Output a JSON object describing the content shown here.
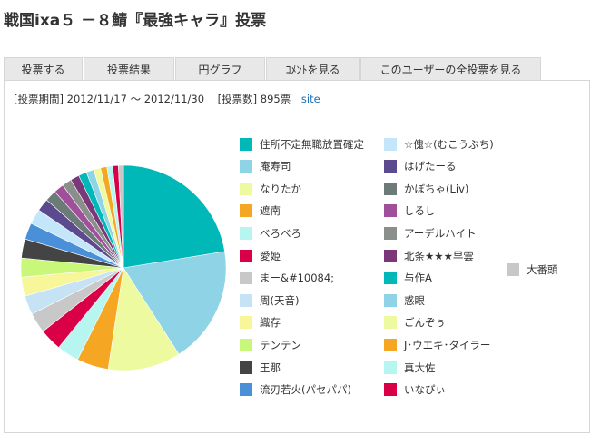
{
  "page": {
    "title": "戦国ixa５ －８鯖『最強キャラ』投票"
  },
  "tabs": [
    {
      "label": "投票する"
    },
    {
      "label": "投票結果"
    },
    {
      "label": "円グラフ"
    },
    {
      "label": "ｺﾒﾝﾄを見る"
    },
    {
      "label": "このユーザーの全投票を見る"
    }
  ],
  "info": {
    "period_label": "[投票期間]",
    "period_value": "2012/11/17 〜 2012/11/30",
    "count_label": "[投票数]",
    "count_value": "895票",
    "site_link": "site"
  },
  "chart_data": {
    "type": "pie",
    "title": "",
    "total_votes": 895,
    "slices": [
      {
        "label": "住所不定無職放置確定",
        "value": 22.5,
        "color": "#00b8b8"
      },
      {
        "label": "庵寿司",
        "value": 18.5,
        "color": "#8fd3e6"
      },
      {
        "label": "なりたか",
        "value": 11.5,
        "color": "#eefa9f"
      },
      {
        "label": "遮南",
        "value": 5.0,
        "color": "#f5a623"
      },
      {
        "label": "べろべろ",
        "value": 3.5,
        "color": "#b7f5f0"
      },
      {
        "label": "愛姫",
        "value": 3.5,
        "color": "#d90048"
      },
      {
        "label": "まー&#10084;",
        "value": 3.2,
        "color": "#c8c8c8"
      },
      {
        "label": "周(天音)",
        "value": 3.0,
        "color": "#c6e3f6"
      },
      {
        "label": "織存",
        "value": 3.0,
        "color": "#f7f79a"
      },
      {
        "label": "テンテン",
        "value": 3.0,
        "color": "#c9f77a"
      },
      {
        "label": "王那",
        "value": 3.0,
        "color": "#444444"
      },
      {
        "label": "流刃若火(パセパパ)",
        "value": 2.6,
        "color": "#4a90d9"
      },
      {
        "label": "☆傀☆(むこうぶち)",
        "value": 2.4,
        "color": "#c4e6fa"
      },
      {
        "label": "はげたーる",
        "value": 2.0,
        "color": "#5c4a8f"
      },
      {
        "label": "かぼちゃ(Liv)",
        "value": 1.8,
        "color": "#6c7a78"
      },
      {
        "label": "しるし",
        "value": 1.6,
        "color": "#a0509a"
      },
      {
        "label": "アーデルハイト",
        "value": 1.5,
        "color": "#8a8f8c"
      },
      {
        "label": "北条★★★早雲",
        "value": 1.4,
        "color": "#7a3878"
      },
      {
        "label": "与作A",
        "value": 1.3,
        "color": "#00b8b8"
      },
      {
        "label": "惑眼",
        "value": 1.2,
        "color": "#8fd3e6"
      },
      {
        "label": "ごんぞぅ",
        "value": 1.1,
        "color": "#eefa9f"
      },
      {
        "label": "J･ウエキ･タイラー",
        "value": 1.0,
        "color": "#f5a623"
      },
      {
        "label": "真大佐",
        "value": 0.9,
        "color": "#b7f5f0"
      },
      {
        "label": "いなぴぃ",
        "value": 0.9,
        "color": "#d90048"
      },
      {
        "label": "大番頭",
        "value": 0.8,
        "color": "#c8c8c8"
      }
    ]
  }
}
